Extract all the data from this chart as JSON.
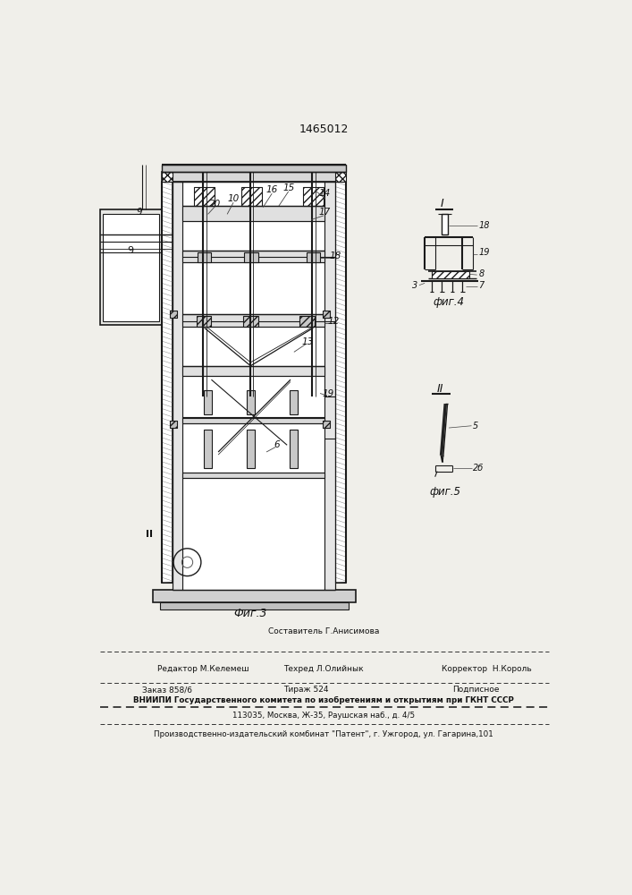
{
  "title": "1465012",
  "fig3_label": "Фиг.3",
  "fig4_label": "фиг.4",
  "fig5_label": "фиг.5",
  "section_I": "I",
  "section_II": "II",
  "bg_color": "#f0efea",
  "line_color": "#1a1a1a",
  "footer_editor": "Редактор М.Келемеш",
  "footer_composer": "Составитель Г.Анисимова",
  "footer_corrector": "Корректор  Н.Король",
  "footer_techred": "Техред Л.Олийнык",
  "footer_order": "Заказ 858/6",
  "footer_tirazh": "Тираж 524",
  "footer_podpisnoe": "Подписное",
  "footer_vniipи": "ВНИИПИ Государственного комитета по изобретениям и открытиям при ГКНТ СССР",
  "footer_address": "113035, Москва, Ж-35, Раушская наб., д. 4/5",
  "footer_patent": "Производственно-издательский комбинат \"Патент\", г. Ужгород, ул. Гагарина,101"
}
